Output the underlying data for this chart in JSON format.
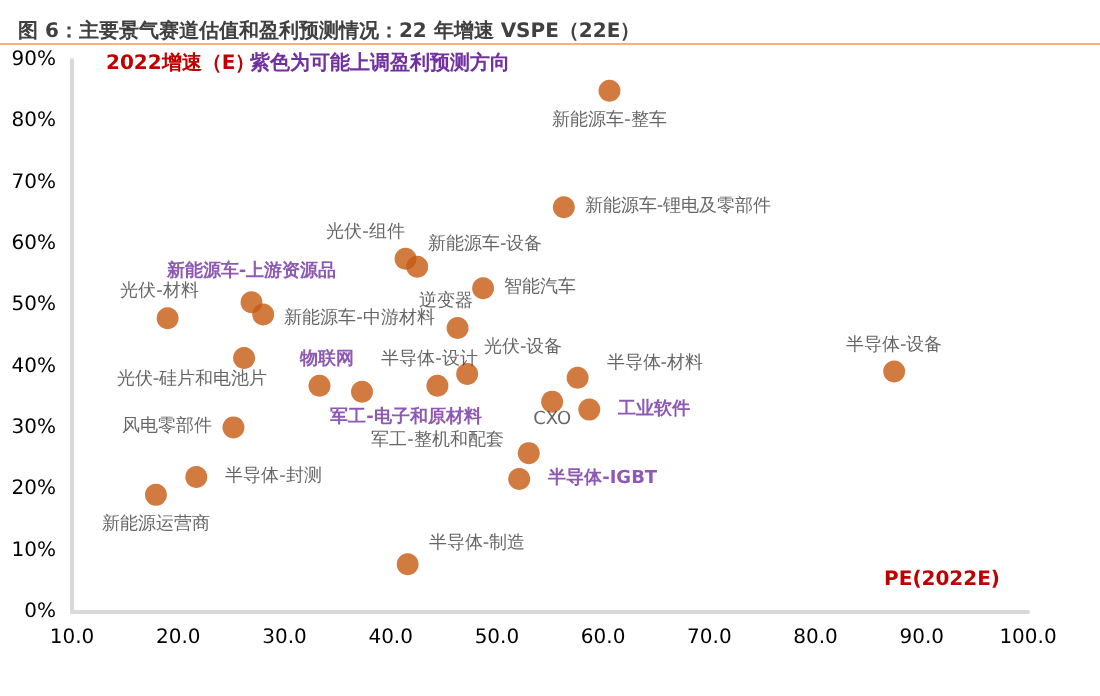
{
  "chart_data": {
    "type": "scatter",
    "title": "图 6：主要景气赛道估值和盈利预测情况：22 年增速 VSPE（22E）",
    "xlabel": "PE(2022E)",
    "ylabel": "2022增速（E）",
    "annotations": [
      "紫色为可能上调盈利预测方向"
    ],
    "series": [
      {
        "color": "#c55a11",
        "x": [
          60.6,
          56.3,
          41.4,
          42.5,
          48.7,
          46.3,
          28.0,
          19.0,
          26.2,
          44.4,
          47.2,
          57.6,
          87.4,
          55.2,
          53.0,
          25.2,
          21.7,
          17.9,
          41.6
        ],
        "values": [
          85,
          66,
          57.6,
          56.3,
          52.8,
          46.3,
          48.5,
          47.9,
          41.4,
          36.9,
          38.8,
          38.2,
          39.2,
          34.3,
          25.9,
          30.1,
          22.0,
          19.1,
          7.8
        ],
        "value_labels": [
          "新能源车-整车",
          "新能源车-锂电及零部件",
          "光伏-组件",
          "新能源车-设备",
          "智能汽车",
          "逆变器",
          "新能源车-中游材料",
          "光伏-材料",
          "光伏-硅片和电池片",
          "半导体-设计",
          "光伏-设备",
          "半导体-材料",
          "半导体-设备",
          "CXO",
          "军工-整机和配套",
          "风电零部件",
          "半导体-封测",
          "新能源运营商",
          "半导体-制造"
        ]
      },
      {
        "color": "#c55a11",
        "x": [
          26.9,
          33.3,
          37.3,
          58.7,
          52.1
        ],
        "values": [
          50.5,
          36.9,
          35.9,
          33.0,
          21.7
        ],
        "value_labels": [
          "新能源车-上游资源品",
          "物联网",
          "军工-电子和原材料",
          "工业软件",
          "半导体-IGBT"
        ]
      }
    ],
    "xlim": [
      10,
      100
    ],
    "xticks": [
      {
        "value": 10,
        "label": "10.0"
      },
      {
        "value": 20,
        "label": "20.0"
      },
      {
        "value": 30,
        "label": "30.0"
      },
      {
        "value": 40,
        "label": "40.0"
      },
      {
        "value": 50,
        "label": "50.0"
      },
      {
        "value": 60,
        "label": "60.0"
      },
      {
        "value": 70,
        "label": "70.0"
      },
      {
        "value": 80,
        "label": "80.0"
      },
      {
        "value": 90,
        "label": "90.0"
      },
      {
        "value": 100,
        "label": "100.0"
      }
    ],
    "ylim": [
      0,
      90
    ],
    "yticks": [
      {
        "value": 0,
        "label": "0%"
      },
      {
        "value": 10,
        "label": "10%"
      },
      {
        "value": 20,
        "label": "20%"
      },
      {
        "value": 30,
        "label": "30%"
      },
      {
        "value": 40,
        "label": "40%"
      },
      {
        "value": 50,
        "label": "50%"
      },
      {
        "value": 60,
        "label": "60%"
      },
      {
        "value": 70,
        "label": "70%"
      },
      {
        "value": 80,
        "label": "80%"
      },
      {
        "value": 90,
        "label": "90%"
      }
    ],
    "grid": false,
    "marker": "circle"
  }
}
